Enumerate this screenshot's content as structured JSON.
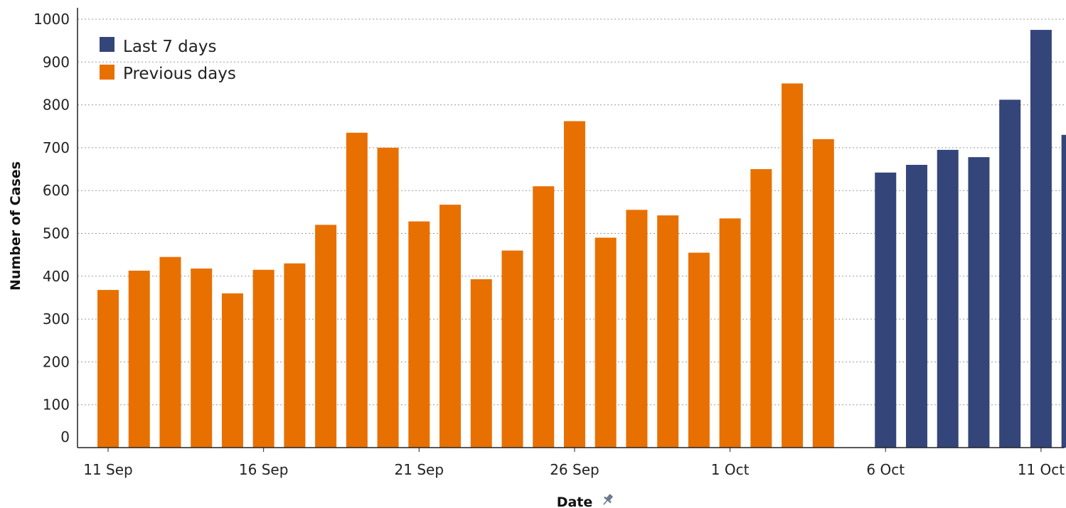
{
  "chart_data": {
    "type": "bar",
    "xlabel": "Date",
    "ylabel": "Number of Cases",
    "ylim": [
      0,
      1000
    ],
    "yticks": [
      0,
      100,
      200,
      300,
      400,
      500,
      600,
      700,
      800,
      900,
      1000
    ],
    "xtick_labels": [
      "11 Sep",
      "16 Sep",
      "21 Sep",
      "26 Sep",
      "1 Oct",
      "6 Oct",
      "11 Oct"
    ],
    "xtick_label_indices": [
      0,
      5,
      10,
      15,
      20,
      25,
      30
    ],
    "categories": [
      "11 Sep",
      "12 Sep",
      "13 Sep",
      "14 Sep",
      "15 Sep",
      "16 Sep",
      "17 Sep",
      "18 Sep",
      "19 Sep",
      "20 Sep",
      "21 Sep",
      "22 Sep",
      "23 Sep",
      "24 Sep",
      "25 Sep",
      "26 Sep",
      "27 Sep",
      "28 Sep",
      "29 Sep",
      "30 Sep",
      "1 Oct",
      "2 Oct",
      "3 Oct",
      "4 Oct",
      "5 Oct",
      "6 Oct",
      "7 Oct",
      "8 Oct",
      "9 Oct",
      "10 Oct",
      "11 Oct",
      "12 Oct"
    ],
    "series": [
      {
        "name": "Last 7 days",
        "color": "#34457a",
        "values": [
          null,
          null,
          null,
          null,
          null,
          null,
          null,
          null,
          null,
          null,
          null,
          null,
          null,
          null,
          null,
          null,
          null,
          null,
          null,
          null,
          null,
          null,
          null,
          null,
          null,
          642,
          660,
          695,
          678,
          812,
          975,
          730
        ]
      },
      {
        "name": "Previous days",
        "color": "#e87000",
        "values": [
          368,
          413,
          445,
          418,
          360,
          415,
          430,
          520,
          735,
          700,
          528,
          567,
          393,
          460,
          610,
          762,
          490,
          555,
          542,
          455,
          535,
          650,
          850,
          720,
          null,
          null,
          null,
          null,
          null,
          null,
          null,
          null
        ]
      }
    ],
    "legend_position": "top-left",
    "grid": true,
    "axis_title_icon": "pin-icon"
  }
}
